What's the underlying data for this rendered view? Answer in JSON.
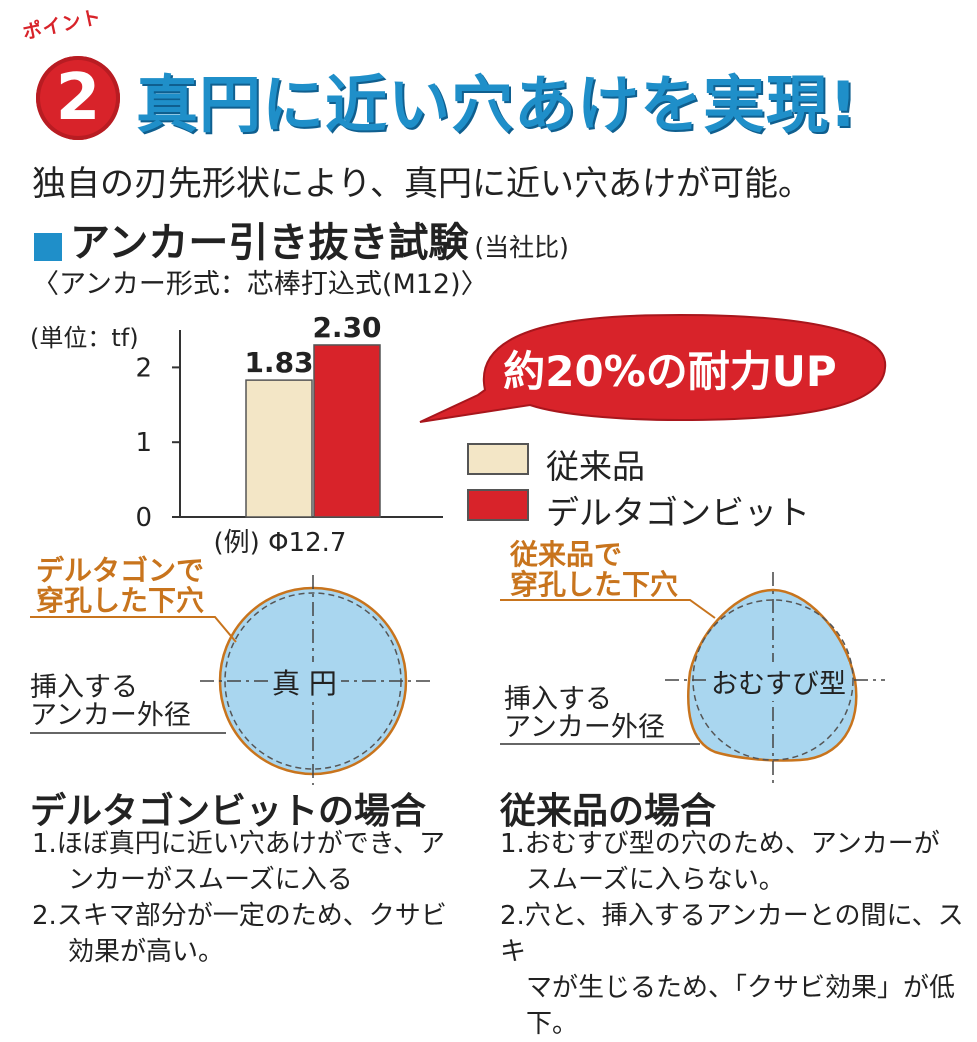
{
  "header": {
    "point_label": "ポイント",
    "number": "2",
    "headline": "真円に近い穴あけを実現!"
  },
  "lead": "独自の刃先形状により、真円に近い穴あけが可能。",
  "section": {
    "title": "アンカー引き抜き試験",
    "note": "(当社比)",
    "anchor_form": "〈アンカー形式：芯棒打込式(M12)〉"
  },
  "chart_data": {
    "type": "bar",
    "unit_label": "(単位：tf)",
    "categories": [
      "(例) Φ12.7"
    ],
    "series": [
      {
        "name": "従来品",
        "values": [
          1.83
        ],
        "color": "#f3e6c6"
      },
      {
        "name": "デルタゴンビット",
        "values": [
          2.3
        ],
        "color": "#d8232a"
      }
    ],
    "value_labels": [
      "1.83",
      "2.30"
    ],
    "yticks": [
      "0",
      "1",
      "2"
    ],
    "ylim": [
      0,
      2.5
    ],
    "callout": "約20%の耐力UP"
  },
  "diagrams": {
    "left": {
      "hole_label": [
        "デルタゴンで",
        "穿孔した下穴"
      ],
      "center_label": "真 円",
      "anchor_label": [
        "挿入する",
        "アンカー外径"
      ]
    },
    "right": {
      "hole_label": [
        "従来品で",
        "穿孔した下穴"
      ],
      "center_label": "おむすび型",
      "anchor_label": [
        "挿入する",
        "アンカー外径"
      ]
    }
  },
  "cases": {
    "left": {
      "title": "デルタゴンビットの場合",
      "notes": [
        [
          "1.ほぼ真円に近い穴あけができ、ア",
          "ンカーがスムーズに入る"
        ],
        [
          "2.スキマ部分が一定のため、クサビ",
          "効果が高い。"
        ]
      ]
    },
    "right": {
      "title": "従来品の場合",
      "notes": [
        [
          "1.おむすび型の穴のため、アンカーが",
          "スムーズに入らない。"
        ],
        [
          "2.穴と、挿入するアンカーとの間に、スキ",
          "マが生じるため、「クサビ効果」が低下。"
        ]
      ]
    }
  },
  "colors": {
    "accent_blue": "#1f8fc9",
    "accent_red": "#d8232a",
    "orange": "#c8741d",
    "hole_fill": "#a9d6ef"
  }
}
